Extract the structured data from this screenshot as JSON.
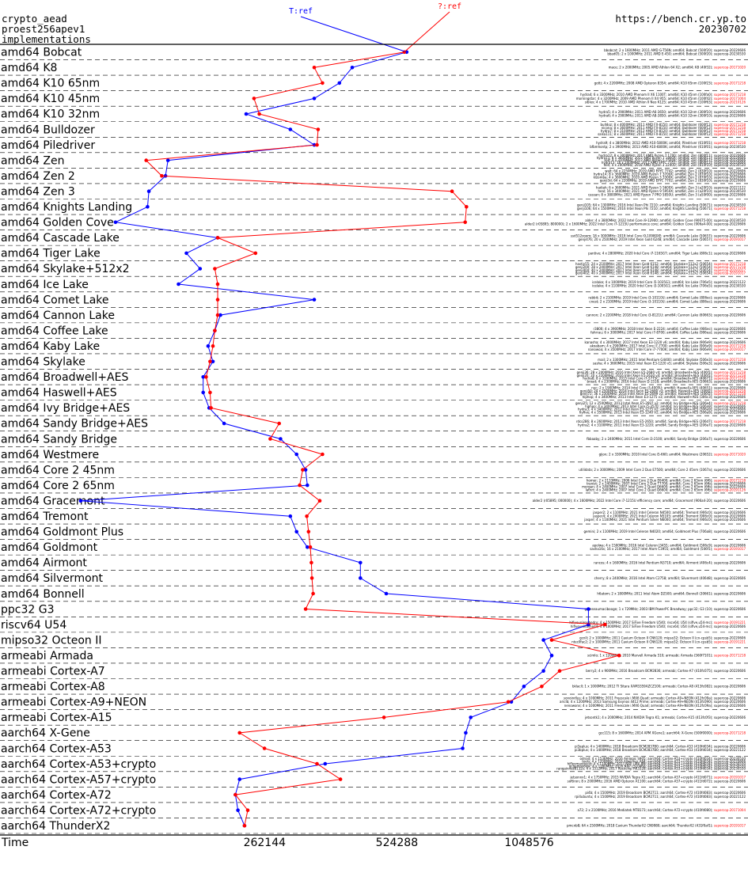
{
  "header": {
    "line1": "crypto_aead",
    "line2": "proest256apev1",
    "line3": "implementations",
    "url": "https://bench.cr.yp.to",
    "date": "20230702"
  },
  "chart_data": {
    "type": "line",
    "xlabel": "Time",
    "x_scale": "log2",
    "xlim": [
      65536,
      3300000
    ],
    "x_ticks": [
      262144,
      524288,
      1048576
    ],
    "x_tick_labels": [
      "262144",
      "524288",
      "1048576"
    ],
    "categories": [
      "amd64 Bobcat",
      "amd64 K8",
      "amd64 K10 65nm",
      "amd64 K10 45nm",
      "amd64 K10 32nm",
      "amd64 Bulldozer",
      "amd64 Piledriver",
      "amd64 Zen",
      "amd64 Zen 2",
      "amd64 Zen 3",
      "amd64 Knights Landing",
      "amd64 Golden Cove",
      "amd64 Cascade Lake",
      "amd64 Tiger Lake",
      "amd64 Skylake+512x2",
      "amd64 Ice Lake",
      "amd64 Comet Lake",
      "amd64 Cannon Lake",
      "amd64 Coffee Lake",
      "amd64 Kaby Lake",
      "amd64 Skylake",
      "amd64 Broadwell+AES",
      "amd64 Haswell+AES",
      "amd64 Ivy Bridge+AES",
      "amd64 Sandy Bridge+AES",
      "amd64 Sandy Bridge",
      "amd64 Westmere",
      "amd64 Core 2 45nm",
      "amd64 Core 2 65nm",
      "amd64 Gracemont",
      "amd64 Tremont",
      "amd64 Goldmont Plus",
      "amd64 Goldmont",
      "amd64 Airmont",
      "amd64 Silvermont",
      "amd64 Bonnell",
      "ppc32 G3",
      "riscv64 U54",
      "mipso32 Octeon II",
      "armeabi Armada",
      "armeabi Cortex-A7",
      "armeabi Cortex-A8",
      "armeabi Cortex-A9+NEON",
      "armeabi Cortex-A15",
      "aarch64 X-Gene",
      "aarch64 Cortex-A53",
      "aarch64 Cortex-A53+crypto",
      "aarch64 Cortex-A57+crypto",
      "aarch64 Cortex-A72",
      "aarch64 Cortex-A72+crypto",
      "aarch64 ThunderX2"
    ],
    "series": [
      {
        "name": "T:ref",
        "color": "#0000ff",
        "values": [
          552000,
          415000,
          388000,
          340000,
          238000,
          300000,
          340000,
          158000,
          156000,
          143000,
          142000,
          120000,
          205000,
          174000,
          187000,
          167000,
          340000,
          208000,
          202000,
          195000,
          200000,
          190000,
          190000,
          196000,
          212000,
          285000,
          310000,
          325000,
          328000,
          100000,
          300000,
          310000,
          328000,
          433000,
          433000,
          496000,
          1430000,
          1430000,
          1130000,
          1180000,
          1130000,
          1020000,
          955000,
          772000,
          752000,
          740000,
          360000,
          230000,
          225000,
          228000,
          236000
        ]
      },
      {
        "name": "?:ref",
        "color": "#ff0000",
        "values": [
          545000,
          340000,
          355000,
          248000,
          255000,
          347000,
          345000,
          141000,
          153000,
          700000,
          755000,
          750000,
          205000,
          250000,
          202000,
          205000,
          205000,
          205000,
          202000,
          200000,
          197000,
          193000,
          197000,
          198000,
          283000,
          270000,
          355000,
          320000,
          315000,
          350000,
          327000,
          330000,
          333000,
          335000,
          336000,
          338000,
          325000,
          1560000,
          1180000,
          1680000,
          1230000,
          1120000,
          940000,
          490000,
          230000,
          262000,
          345000,
          390000,
          225000,
          240000,
          236000
        ]
      }
    ],
    "rows": [
      {
        "label": "amd64 Bobcat",
        "details": [
          "bbobcat; 2 x 1600MHz; 2011 AMD G-T56N; amd64; Bobcat (500f20); supercop-20220606",
          "bbad05; 2 x 1000MHz; 2011 AMD E-450; amd64; Bobcat (500f20); supercop-20230530"
        ]
      },
      {
        "label": "amd64 K8",
        "details": [
          "mace; 2 x 2000MHz; 2005 AMD Athlon 64 X2; amd64; K8 (40f32); supercop-20171020"
        ]
      },
      {
        "label": "amd64 K10 65nm",
        "details": [
          "gotti; 4 x 2200MHz; 2008 AMD Opteron 8354; amd64; K10 65nm (100f23); supercop-20171218"
        ]
      },
      {
        "label": "amd64 K10 45nm",
        "details": [
          "hydra4; 6 x 3300MHz; 2010 AMD Phenom II X6 1100T; amd64; K10 45nm (100fa0); supercop-20171218",
          "morningstar; 4 x 3200MHz; 2009 AMD Phenom II X4 955; amd64; K10 45nm (100f42); supercop-20171004",
          "siblex; 4 x 1700MHz; 2010 AMD Athlon II Neo K125; amd64; K10 45nm (100f63); supercop-20210126"
        ]
      },
      {
        "label": "amd64 K10 32nm",
        "details": [
          "hydra5; 4 x 2900MHz; 2011 AMD A6-3650; amd64; K10 32nm (300f10); supercop-20220606",
          "hydra6; 4 x 2900MHz; 2011 AMD A8-3850; amd64; K10 32nm (300f10); supercop-20220606"
        ]
      },
      {
        "label": "amd64 Bulldozer",
        "details": [
          "bulldoz; 8 x 4000MHz; 2011 AMD FX-8150; amd64; Bulldozer (600f12); supercop-20171218",
          "nicona; 8 x 3600MHz; 2011 AMD FX-8150; amd64; Bulldozer (600f12); supercop-20171218",
          "hydra7; 8 x 3100MHz; 2012 AMD FX-8120; amd64; Bulldozer (600f12); supercop-20171218",
          "salsa111; 8 x 3600MHz; 2011 AMD FX-8150; amd64; Bulldozer (600f12); supercop-20171218"
        ]
      },
      {
        "label": "amd64 Piledriver",
        "details": [
          "hydra9; 4 x 3800MHz; 2012 AMD A10-5800K; amd64; Piledriver (610f01); supercop-20171218",
          "bfbmhontp; 2 x 3900MHz; 2013 AMD A10-6800K; amd64; Piledriver (610f01); supercop-20230530"
        ]
      },
      {
        "label": "amd64 Zen",
        "details": [
          "hydra12; 8 x 3000MHz; 2017 AMD Ryzen 7 1700; amd64; Zen (800f11); supercop-20220606",
          "hydra11; 8 x 3600MHz; 2017 AMD Ryzen 7 1800X; amd64; Zen (800f11); supercop-20220606",
          "zed; 4 x 3100MHz; 2017 AMD Ryzen 5 1500X; amd64; Zen (800f11); supercop-20220606",
          "hydra13; 16 x 2000MHz; 2017 AMD EPYC 7351; amd64; Zen (800f12); supercop-20220606",
          "dell; 4 x 2000MHz; 2018 AMD Ryzen 3 2200U; amd64; Zen (810f10); supercop-20230530"
        ]
      },
      {
        "label": "amd64 Zen 2",
        "details": [
          "walt; 64 x 2250MHz; 2019 AMD EPYC 7742; amd64; Zen 2 (830f10); supercop-20220606",
          "hydra14; 8 x 3600MHz; 2019 AMD Ryzen 7 3700X; amd64; Zen 2 (870f10); supercop-20220606",
          "kizomba; 4 x 3600MHz; 2020 AMD Ryzen 3 3300X; amd64; Zen 2 (870f10); supercop-20220606",
          "genji3d; 64 x 2200MHz; 2019 AMD EPYC 7702; amd64; Zen 2 (830f10); supercop-20220606"
        ]
      },
      {
        "label": "amd64 Zen 3",
        "details": [
          "hadiah; 6 x 3600MHz; 2021 AMD Ryzen 5 5600X; amd64; Zen 3 (a20f10); supercop-20221122",
          "heal; 16 x 3400MHz; 2021 AMD Ryzen 9 5950X; amd64; Zen 3 (a20f10); supercop-20230530",
          "cassan; 8 x 3800MHz; 2021 AMD Ryzen 7 PRO 5850U; amd64; Zen 3 (a50f00); supercop-20220606"
        ]
      },
      {
        "label": "amd64 Knights Landing",
        "details": [
          "genji105; 64 x 1300MHz; 2016 Intel Xeon Phi 7210; amd64; Knights Landing (50671); supercop-20230530",
          "genji106; 64 x 1500MHz; 2016 Intel Xeon Phi 7210; amd64; Knights Landing (50671); supercop-20171218"
        ]
      },
      {
        "label": "amd64 Golden Cove",
        "details": [
          "alder; 4 x 3800MHz; 2022 Intel Core i9-12900; amd64; Golden Cove (90675-00); supercop-20230530",
          "alder2 (r05895; 800000); 2 x 1600MHz; 2022 Intel Core i7-1215U performance core; amd64; Golden Cove (906a4-00); supercop-20220606"
        ]
      },
      {
        "label": "amd64 Cascade Lake",
        "details": [
          "ssd512zoom; 18 x 3000MHz; 2019 Intel Core i9-10980XE; amd64; Cascade Lake (50657); supercop-20220606",
          "genji476; 20 x 2500MHz; 2019 Intel Xeon Gold 6248; amd64; Cascade Lake (50657); supercop-20191017"
        ]
      },
      {
        "label": "amd64 Tiger Lake",
        "details": [
          "pantive; 4 x 2800MHz; 2020 Intel Core i7-1165G7; amd64; Tiger Lake (806c1); supercop-20220606"
        ]
      },
      {
        "label": "amd64 Skylake+512x2",
        "details": [
          "hastiy55; 24 x 2100MHz; 2017 Intel Xeon Gold 6152; amd64; Skylake+512x2 (50654); supercop-20171218",
          "genji200; 28 x 2400MHz; 2017 Intel Xeon Gold 6148; amd64; Skylake+512x2 (50654); supercop-20171218",
          "genji404; 40 x 2400MHz; 2017 Intel Xeon Gold 6148; amd64; Skylake+512x2 (50654); supercop-20191017",
          "genji402; 40 x 2400MHz; 2017 Intel Xeon Gold 6148; amd64; Skylake+512x2 (50654); supercop-20191017"
        ]
      },
      {
        "label": "amd64 Ice Lake",
        "details": [
          "icelake; 4 x 1000MHz; 2019 Intel Core i5-1035G1; amd64; Ice Lake (706e5); supercop-20221122",
          "icelake; 4 x 1100MHz; 2020 Intel Core i3-1005G1; amd64; Ice Lake (706e5); supercop-20230530"
        ]
      },
      {
        "label": "amd64 Comet Lake",
        "details": [
          "rabbit; 2 x 2100MHz; 2019 Intel Core i3-10110U; amd64; Comet Lake (806ec); supercop-20220606",
          "cnest; 2 x 2100MHz; 2019 Intel Core i3-10110U; amd64; Comet Lake (806ec); supercop-20220606"
        ]
      },
      {
        "label": "amd64 Cannon Lake",
        "details": [
          "cannon; 2 x 2200MHz; 2018 Intel Core i3-8121U; amd64; Cannon Lake (60663); supercop-20220606"
        ]
      },
      {
        "label": "amd64 Coffee Lake",
        "details": [
          "r3800; 4 x 3900MHz; 2018 Intel Xeon E-2224; amd64; Coffee Lake (906ec); supercop-20220606",
          "fahrrau; 6 x 3000MHz; 2017 Intel Core i7-8700; amd64; Coffee Lake (906ea); supercop-20220606"
        ]
      },
      {
        "label": "amd64 Kaby Lake",
        "details": [
          "kanasha; 4 x 3000MHz; 2017 Intel Xeon E3-1220 v6; amd64; Kaby Lake (906e9); supercop-20220606",
          "akoabam; 4 x 2900MHz; 2017 Intel Core i7-7700; amd64; Kaby Lake (906e9); supercop-20171218",
          "nanowoa; 4 x 3500MHz; 2017 Intel Core i7-7700K; amd64; Kaby Lake (906e9); supercop-20191017"
        ]
      },
      {
        "label": "amd64 Skylake",
        "details": [
          "mail; 2 x 3300MHz; 2015 Intel Pentium G4400; amd64; Skylake (506e3); supercop-20171218",
          "sasha; 4 x 3600MHz; 2015 Intel Xeon E3-1220 v5; amd64; Skylake (506e3); supercop-20220606"
        ]
      },
      {
        "label": "amd64 Broadwell+AES",
        "details": [
          "genji36; 28 x 2400MHz; 2016 Intel Xeon E5-2680 v4; amd64; Broadwell+AES (406f1); supercop-20171218",
          "genji20; 20 x 2200MHz; 2016 Intel Xeon E5-2630 v4; amd64; Broadwell+AES (406f1); supercop-20171218",
          "hydra8; 8 x 3100MHz; 2015 Intel Core i7-5775C; amd64; Broadwell+AES (40671); supercop-20171218",
          "broad; 4 x 2300MHz; 2016 Intel Xeon D-1518; amd64; Broadwell+AES (50663); supercop-20220606"
        ]
      },
      {
        "label": "amd64 Haswell+AES",
        "details": [
          "nuc; 2 x 1900MHz; 2014 Intel Core i3-4005U; amd64; Haswell+AES (40651); supercop-20220606",
          "genji50; 24 x 2500MHz; 2014 Intel Xeon E5-2680 v3; amd64; Haswell+AES (306f2); supercop-20171218",
          "genji72; 36 x 2300MHz; 2014 Intel Xeon E5-2699 v3; amd64; Haswell+AES (306f2); supercop-20171218",
          "hiphop; 4 x 3400MHz; 2013 Intel Xeon E3-1275 v3; amd64; Haswell+AES (306c3); supercop-20220606"
        ]
      },
      {
        "label": "amd64 Ivy Bridge+AES",
        "details": [
          "genji25; 12 x 2500MHz; 2013 Intel Xeon E5-2697 v2; amd64; Ivy Bridge+AES (306e4); supercop-20171218",
          "hiphop; 4 x 3400MHz; 2013 Intel Core i5-3570; amd64; Ivy Bridge+AES (306a9); supercop-20220606",
          "hydra3; 4 x 3400MHz; 2012 Intel Xeon E3-1275 V2; amd64; Ivy Bridge+AES (306a9); supercop-20220606",
          "hyfive; 4 x 3500MHz; 2013 Intel Xeon E3-1240 V2; amd64; Ivy Bridge+AES (306a9); supercop-20220606"
        ]
      },
      {
        "label": "amd64 Sandy Bridge+AES",
        "details": [
          "rdcs286; 8 x 2600MHz; 2013 Intel Xeon E5-2650; amd64; Sandy Bridge+AES (206d7); supercop-20171218",
          "hydra2; 4 x 3100MHz; 2011 Intel Xeon E3-1220; amd64; Sandy Bridge+AES (206a7); supercop-20220606"
        ]
      },
      {
        "label": "amd64 Sandy Bridge",
        "details": [
          "fbbaaby; 2 x 2400MHz; 2011 Intel Core i3-2100; amd64; Sandy Bridge (206a7); supercop-20220606"
        ]
      },
      {
        "label": "amd64 Westmere",
        "details": [
          "gijon; 2 x 3300MHz; 2010 Intel Core i5-660; amd64; Westmere (20652); supercop-20171020"
        ]
      },
      {
        "label": "amd64 Core 2 45nm",
        "details": [
          "utilidata; 2 x 3000MHz; 2009 Intel Core 2 Duo E7500; amd64; Core 2 45nm (1067a); supercop-20220606"
        ]
      },
      {
        "label": "amd64 Core 2 65nm",
        "details": [
          "homer; 2 x 2133MHz; 2006 Intel Core 2 Duo E6400; amd64; Core 2 65nm (6f6); supercop-20171218",
          "tranist; 2 x 2400MHz; 2007 Intel Core 2 Duo T7700; amd64; Core 2 65nm (6fb); supercop-20220606",
          "morgan; 4 x 2400MHz; 2007 Intel Core 2 Quad Q6600; amd64; Core 2 65nm (6fb); supercop-20220606",
          "latnrt; 4 x 2400MHz; 2007 Intel Core 2 Quad Q6600; amd64; Core 2 65nm (6fb); supercop-20191126"
        ]
      },
      {
        "label": "amd64 Gracemont",
        "details": [
          "alder2 (r05895; 000000); 4 x 1600MHz; 2022 Intel Core i7-1215U efficiency core; amd64; Gracemont (906a4-20); supercop-20220606"
        ]
      },
      {
        "label": "amd64 Tremont",
        "details": [
          "jasper2; 2 x 1100MHz; 2021 Intel Celeron N4500; amd64; Tremont (906c0); supercop-20220606",
          "jasper4; 4 x 2000MHz; 2021 Intel Celeron N5105; amd64; Tremont (906c0); supercop-20220606",
          "jasper; 4 x 1100MHz; 2021 Intel Pentium Silver N6000; amd64; Tremont (906c0); supercop-20220606"
        ]
      },
      {
        "label": "amd64 Goldmont Plus",
        "details": [
          "gemini; 2 x 1100MHz; 2019 Intel Celeron N4020; amd64; Goldmont Plus (706a8); supercop-20220606"
        ]
      },
      {
        "label": "amd64 Goldmont",
        "details": [
          "apolwa; 4 x 1500MHz; 2016 Intel Celeron J3455; amd64; Goldmont (506c9); supercop-20220606",
          "sasha16s; 16 x 2100MHz; 2017 Intel Atom C3955; amd64; Goldmont (506f1); supercop-20191017"
        ]
      },
      {
        "label": "amd64 Airmont",
        "details": [
          "rancos; 4 x 1600MHz; 2016 Intel Pentium N3710; amd64; Airmont (406c4); supercop-20220606"
        ]
      },
      {
        "label": "amd64 Silvermont",
        "details": [
          "cherry; 8 x 2400MHz; 2016 Intel Atom C2758; amd64; Silvermont (406d8); supercop-20220606"
        ]
      },
      {
        "label": "amd64 Bonnell",
        "details": [
          "h6atom; 2 x 1800MHz; 2011 Intel Atom D2500; amd64; Bonnell (30661); supercop-20220606"
        ]
      },
      {
        "label": "ppc32 G3",
        "details": [
          "gateseaumacibooge; 1 x 729MHz; 2003 IBM PowerPC Broadway; ppc32; G3 (10); supercop-20220606"
        ]
      },
      {
        "label": "riscv64 U54",
        "details": [
          "hifiveunleashedrv; 4 x 1500MHz; 2017 SiFive Freedom U540; riscv64; U54 (sifive,u54-mc); supercop-20191221",
          "hifiveunleashed4; 4 x 1000MHz; 2017 SiFive Freedom U540; riscv64; U54 (sifive,u54-mc); supercop-20220606"
        ]
      },
      {
        "label": "mipso32 Octeon II",
        "details": [
          "gcnII; 2 x 1000MHz; 2011 Cavium Octeon II CN6120; mipso32; Octeon II (cn-cpsb5); supercop-20220606",
          "nteclIfac2; 2 x 1000MHz; 2011 Cavium Octeon II CN6120; mipso32; Octeon II (cn-cpsb5); supercop-20191221"
        ]
      },
      {
        "label": "armeabi Armada",
        "details": [
          "scimIo; 1 x 1200MHz; 2010 Marvell Armada 510; armeabi; Armada (560f7101); supercop-20171218"
        ]
      },
      {
        "label": "armeabi Cortex-A7",
        "details": [
          "berry2; 4 x 900MHz; 2016 Broadcom BCM2836; armeabi; Cortex-A7 (410fc075); supercop-20220606"
        ]
      },
      {
        "label": "armeabi Cortex-A8",
        "details": [
          "bklacll; 1 x 1000MHz; 2012 TI Sitara XAM3359AZCZ100; armeabi; Cortex-A8 (413fc082); supercop-20220606"
        ]
      },
      {
        "label": "armeabi Cortex-A9+NEON",
        "details": [
          "sonoindlus; 4 x 1000MHz; 2011 Freescale i.MX6 Quad; armeabi; Cortex-A9+NEON (412fc09a); supercop-20220606",
          "ariclb; 4 x 1200MHz; 2013 Samsung Exynos 4412 Prime; armeabi; Cortex-A9+NEON (413fc090); supercop-20220606",
          "nenoworxi; 4 x 1000MHz; 2011 Freescale i.MX6 Quad; armeabi; Cortex-A9+NEON (412fc09a); supercop-20220606"
        ]
      },
      {
        "label": "armeabi Cortex-A15",
        "details": [
          "jetsontk1; 4 x 2000MHz; 2014 NVIDIA Tegra K1; armeabi; Cortex-A15 (413fc0f3); supercop-20220606"
        ]
      },
      {
        "label": "aarch64 X-Gene",
        "details": [
          "gcc115; 8 x 1600MHz; 2014 APM XGene1; aarch64; X-Gene (500f0000); supercop-20171218"
        ]
      },
      {
        "label": "aarch64 Cortex-A53",
        "details": [
          "pi3aplus; 4 x 1400MHz; 2018 Broadcom BCM2837B0; aarch64; Cortex-A53 (410fd034); supercop-20220606",
          "pi3bplus; 4 x 1400MHz; 2018 Broadcom BCM2837B0; aarch64; Cortex-A53 (410fd034); supercop-20221122"
        ]
      },
      {
        "label": "aarch64 Cortex-A53+crypto",
        "details": [
          "odroid; 4 x 1536MHz; 2016 Amlogic S905; aarch64; Cortex-A53+crypto (410fd034); supercop-20230530",
          "tools; 4 x 1200MHz; 2016 Allwinner A64; aarch64; Cortex-A53+crypto (410fd034); supercop-20220606",
          "hiflexmaxquest; 4 x 1100MHz; 2017 NXP i.MX 8M; aarch64; Cortex-A53+crypto (410fd034); supercop-20230530",
          "gcgamoooow; 4 x 1200MHz; 2016 NXP LS1046A; aarch64; Cortex-A53+crypto (410fd034); supercop-20230530",
          "rangainnes8132s; 4 x 1512MHz; 2017 Rockchip RK3328; aarch64; Cortex-A53+crypto (410fd034); supercop-20230530"
        ]
      },
      {
        "label": "aarch64 Cortex-A57+crypto",
        "details": [
          "jetsonnx1; 4 x 1750MHz; 2015 NVIDIA Tegra X1; aarch64; Cortex-A57+crypto (411fd071); supercop-20191017",
          "softiron; 8 x 2000MHz; 2016 AMD Opteron A1100; aarch64; Cortex-A57+crypto (411fd072); supercop-20220606"
        ]
      },
      {
        "label": "aarch64 Cortex-A72",
        "details": [
          "pi4b; 4 x 1500MHz; 2019 Broadcom BCM2711; aarch64; Cortex-A72 (410fd083); supercop-20220606",
          "rpi4ubuntu; 4 x 1500MHz; 2019 Broadcom BCM2711; aarch64; Cortex-A72 (410fd083); supercop-20221122"
        ]
      },
      {
        "label": "aarch64 Cortex-A72+crypto",
        "details": [
          "a72; 2 x 2100MHz; 2016 Mediatek MT8173; aarch64; Cortex-A72+crypto (410fd080); supercop-20171004"
        ]
      },
      {
        "label": "aarch64 ThunderX2",
        "details": [
          "pmcnb8; 64 x 2500MHz; 2018 Cavium ThunderX2 CN9980; aarch64; ThunderX2 (431f0af1); supercop-20191017"
        ]
      }
    ]
  }
}
